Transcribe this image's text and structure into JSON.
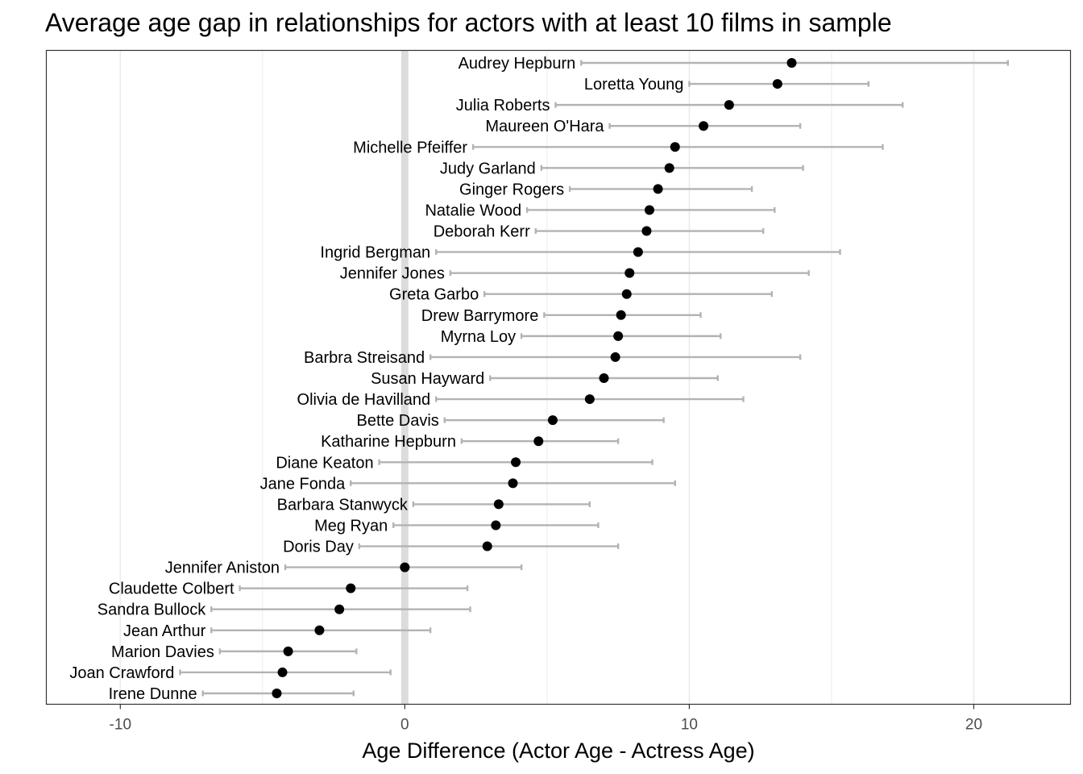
{
  "chart_data": {
    "type": "scatter",
    "title": "Average age gap in relationships for actors with at least 10 films in sample",
    "xlabel": "Age Difference (Actor Age - Actress Age)",
    "ylabel": "",
    "xlim": [
      -12.6,
      23.4
    ],
    "xticks": [
      -10,
      0,
      10,
      20
    ],
    "grid": true,
    "legend": "none",
    "colors": {
      "point": "#000000",
      "errorbar": "#b3b3b3",
      "zero_line": "#dcdcdc",
      "grid": "#ebebeb",
      "border": "#333333"
    },
    "points": [
      {
        "name": "Audrey Hepburn",
        "value": 13.6,
        "low": 6.2,
        "high": 21.2
      },
      {
        "name": "Loretta Young",
        "value": 13.1,
        "low": 10.0,
        "high": 16.3
      },
      {
        "name": "Julia Roberts",
        "value": 11.4,
        "low": 5.3,
        "high": 17.5
      },
      {
        "name": "Maureen O'Hara",
        "value": 10.5,
        "low": 7.2,
        "high": 13.9
      },
      {
        "name": "Michelle Pfeiffer",
        "value": 9.5,
        "low": 2.4,
        "high": 16.8
      },
      {
        "name": "Judy Garland",
        "value": 9.3,
        "low": 4.8,
        "high": 14.0
      },
      {
        "name": "Ginger Rogers",
        "value": 8.9,
        "low": 5.8,
        "high": 12.2
      },
      {
        "name": "Natalie Wood",
        "value": 8.6,
        "low": 4.3,
        "high": 13.0
      },
      {
        "name": "Deborah Kerr",
        "value": 8.5,
        "low": 4.6,
        "high": 12.6
      },
      {
        "name": "Ingrid Bergman",
        "value": 8.2,
        "low": 1.1,
        "high": 15.3
      },
      {
        "name": "Jennifer Jones",
        "value": 7.9,
        "low": 1.6,
        "high": 14.2
      },
      {
        "name": "Greta Garbo",
        "value": 7.8,
        "low": 2.8,
        "high": 12.9
      },
      {
        "name": "Drew Barrymore",
        "value": 7.6,
        "low": 4.9,
        "high": 10.4
      },
      {
        "name": "Myrna Loy",
        "value": 7.5,
        "low": 4.1,
        "high": 11.1
      },
      {
        "name": "Barbra Streisand",
        "value": 7.4,
        "low": 0.9,
        "high": 13.9
      },
      {
        "name": "Susan Hayward",
        "value": 7.0,
        "low": 3.0,
        "high": 11.0
      },
      {
        "name": "Olivia de Havilland",
        "value": 6.5,
        "low": 1.1,
        "high": 11.9
      },
      {
        "name": "Bette Davis",
        "value": 5.2,
        "low": 1.4,
        "high": 9.1
      },
      {
        "name": "Katharine Hepburn",
        "value": 4.7,
        "low": 2.0,
        "high": 7.5
      },
      {
        "name": "Diane Keaton",
        "value": 3.9,
        "low": -0.9,
        "high": 8.7
      },
      {
        "name": "Jane Fonda",
        "value": 3.8,
        "low": -1.9,
        "high": 9.5
      },
      {
        "name": "Barbara Stanwyck",
        "value": 3.3,
        "low": 0.3,
        "high": 6.5
      },
      {
        "name": "Meg Ryan",
        "value": 3.2,
        "low": -0.4,
        "high": 6.8
      },
      {
        "name": "Doris Day",
        "value": 2.9,
        "low": -1.6,
        "high": 7.5
      },
      {
        "name": "Jennifer Aniston",
        "value": 0.0,
        "low": -4.2,
        "high": 4.1
      },
      {
        "name": "Claudette Colbert",
        "value": -1.9,
        "low": -5.8,
        "high": 2.2
      },
      {
        "name": "Sandra Bullock",
        "value": -2.3,
        "low": -6.8,
        "high": 2.3
      },
      {
        "name": "Jean Arthur",
        "value": -3.0,
        "low": -6.8,
        "high": 0.9
      },
      {
        "name": "Marion Davies",
        "value": -4.1,
        "low": -6.5,
        "high": -1.7
      },
      {
        "name": "Joan Crawford",
        "value": -4.3,
        "low": -7.9,
        "high": -0.5
      },
      {
        "name": "Irene Dunne",
        "value": -4.5,
        "low": -7.1,
        "high": -1.8
      }
    ]
  }
}
